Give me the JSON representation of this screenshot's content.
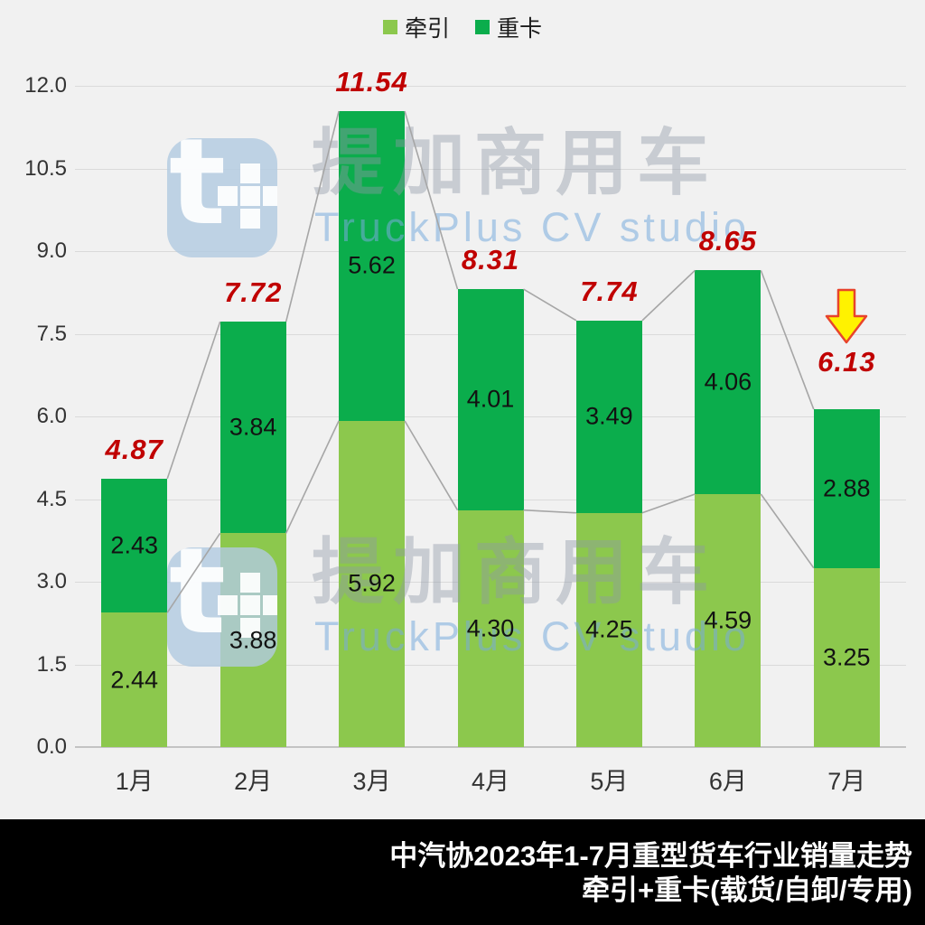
{
  "chart_data": {
    "type": "bar",
    "stacked": true,
    "title": "",
    "categories": [
      "1月",
      "2月",
      "3月",
      "4月",
      "5月",
      "6月",
      "7月"
    ],
    "series": [
      {
        "name": "牵引",
        "color": "#8CC84D",
        "values": [
          2.44,
          3.88,
          5.92,
          4.3,
          4.25,
          4.59,
          3.25
        ]
      },
      {
        "name": "重卡",
        "color": "#0BAD4C",
        "values": [
          2.43,
          3.84,
          5.62,
          4.01,
          3.49,
          4.06,
          2.88
        ]
      }
    ],
    "totals": [
      4.87,
      7.72,
      11.54,
      8.31,
      7.74,
      8.65,
      6.13
    ],
    "total_label_color": "#C00000",
    "xlabel": "",
    "ylabel": "",
    "ylim": [
      0,
      12
    ],
    "ytick_step": 1.5,
    "yticks": [
      "0.0",
      "1.5",
      "3.0",
      "4.5",
      "6.0",
      "7.5",
      "9.0",
      "10.5",
      "12.0"
    ],
    "grid": true,
    "legend_position": "top-center",
    "series_connector_lines": true,
    "annotation": {
      "type": "down-arrow",
      "category": "7月",
      "fill": "#FFF200",
      "border": "#E8432B"
    }
  },
  "watermark": {
    "cn": "提加商用车",
    "en": "TruckPlus CV studio"
  },
  "footer": {
    "line1": "中汽协2023年1-7月重型货车行业销量走势",
    "line2": "牵引+重卡(载货/自卸/专用)"
  }
}
